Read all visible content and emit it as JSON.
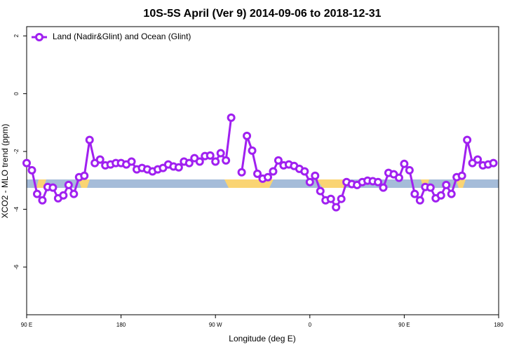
{
  "chart_data": {
    "type": "line",
    "title": "10S-5S April (Ver 9)   2014-09-06 to 2018-12-31",
    "ylabel": "XCO2 - MLO trend (ppm)",
    "xlabel": "Longitude (deg E)",
    "xlim": [
      90,
      540
    ],
    "ylim": [
      -7.65,
      2.32
    ],
    "xticks": [
      {
        "value": 90,
        "label": "90 E"
      },
      {
        "value": 180,
        "label": "180"
      },
      {
        "value": 270,
        "label": "90 W"
      },
      {
        "value": 360,
        "label": "0"
      },
      {
        "value": 450,
        "label": "90 E"
      },
      {
        "value": 540,
        "label": "180"
      }
    ],
    "yticks": [
      2,
      0,
      -2,
      -4,
      -6
    ],
    "legend": "top-left",
    "x": [
      90,
      95,
      100,
      105,
      110,
      115,
      120,
      125,
      130,
      135,
      140,
      145,
      150,
      155,
      160,
      165,
      170,
      175,
      180,
      185,
      190,
      195,
      200,
      205,
      210,
      215,
      220,
      225,
      230,
      235,
      240,
      245,
      250,
      255,
      260,
      265,
      270,
      275,
      280,
      285,
      290,
      295,
      300,
      305,
      310,
      315,
      320,
      325,
      330,
      335,
      340,
      345,
      350,
      355,
      360,
      365,
      370,
      375,
      380,
      385,
      390,
      395,
      400,
      405,
      410,
      415,
      420,
      425,
      430,
      435,
      440,
      445,
      450,
      455,
      460,
      465,
      470,
      475,
      480,
      485,
      490,
      495,
      500,
      505,
      510,
      515,
      520,
      525,
      530,
      535
    ],
    "series": [
      {
        "name": "Land (Nadir&Glint) and Ocean (Glint)",
        "color": "#a020f0",
        "values": [
          -2.4,
          -2.65,
          -3.47,
          -3.69,
          -3.23,
          -3.25,
          -3.62,
          -3.52,
          -3.16,
          -3.47,
          -2.89,
          -2.84,
          -1.6,
          -2.4,
          -2.28,
          -2.48,
          -2.45,
          -2.4,
          -2.4,
          -2.45,
          -2.35,
          -2.62,
          -2.57,
          -2.62,
          -2.69,
          -2.62,
          -2.57,
          -2.45,
          -2.52,
          -2.55,
          -2.35,
          -2.4,
          -2.23,
          -2.35,
          -2.16,
          -2.14,
          -2.35,
          -2.06,
          -2.31,
          -0.83,
          null,
          -2.72,
          -1.46,
          -1.97,
          -2.77,
          -2.94,
          -2.89,
          -2.69,
          -2.31,
          -2.48,
          -2.45,
          -2.5,
          -2.6,
          -2.69,
          -3.06,
          -2.84,
          -3.37,
          -3.69,
          -3.64,
          -3.93,
          -3.64,
          -3.06,
          -3.13,
          -3.16,
          -3.06,
          -3.01,
          -3.03,
          -3.06,
          -3.25,
          -2.74,
          -2.79,
          -2.91,
          -2.43,
          -2.65,
          -3.47,
          -3.69,
          -3.23,
          -3.25,
          -3.62,
          -3.52,
          -3.16,
          -3.47,
          -2.89,
          -2.84,
          -1.6,
          -2.4,
          -2.28,
          -2.48,
          -2.45,
          -2.4
        ]
      }
    ]
  }
}
